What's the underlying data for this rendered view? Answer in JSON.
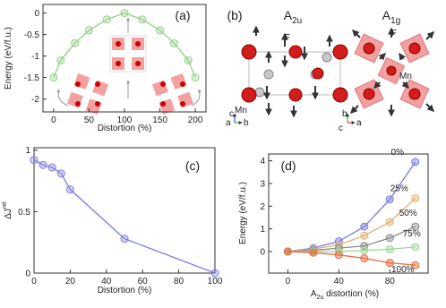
{
  "chart_data": [
    {
      "type": "line",
      "panel": "(a)",
      "xlabel": "Distortion (%)",
      "ylabel": "Energy (eV/f.u.)",
      "x": [
        0,
        10,
        30,
        50,
        75,
        100,
        125,
        150,
        170,
        190,
        200
      ],
      "values": [
        -1.5,
        -1.1,
        -0.7,
        -0.4,
        -0.15,
        0,
        -0.15,
        -0.4,
        -0.7,
        -1.1,
        -1.5
      ],
      "color": "#8fd184",
      "xlim": [
        -15,
        215
      ],
      "xticks": [
        0,
        50,
        100,
        150,
        200
      ],
      "ylim": [
        -2.3,
        0.2
      ],
      "yticks": [
        0,
        -0.5,
        -1,
        -1.5,
        -2
      ]
    },
    {
      "type": "line",
      "panel": "(c)",
      "xlabel": "Distortion (%)",
      "ylabel": "ΔJ",
      "ylabel_sup": "rel",
      "x": [
        0,
        5,
        10,
        15,
        20,
        50,
        100
      ],
      "values": [
        0.92,
        0.88,
        0.86,
        0.81,
        0.68,
        0.28,
        0
      ],
      "color": "#7b7be0",
      "xlim": [
        0,
        100
      ],
      "xticks": [
        0,
        20,
        40,
        60,
        80,
        100
      ],
      "ylim": [
        0,
        1.02
      ],
      "yticks": [
        0,
        0.5,
        1
      ]
    },
    {
      "type": "line",
      "panel": "(d)",
      "xlabel": "A",
      "xlabel_sub": "2u",
      "xlabel_rest": " distortion (%)",
      "ylabel": "Energy (eV/f.u.)",
      "x": [
        0,
        20,
        40,
        60,
        80,
        100
      ],
      "series": [
        {
          "name": "0%",
          "color": "#7b7be0",
          "values": [
            0,
            0.15,
            0.45,
            1.1,
            2.3,
            3.95
          ]
        },
        {
          "name": "25%",
          "color": "#e3b074",
          "values": [
            0,
            0.1,
            0.3,
            0.7,
            1.3,
            2.35
          ]
        },
        {
          "name": "50%",
          "color": "#8c8c8c",
          "values": [
            0,
            0.05,
            0.15,
            0.25,
            0.6,
            1.1
          ]
        },
        {
          "name": "75%",
          "color": "#9fd896",
          "values": [
            0,
            0,
            0,
            0.05,
            0.1,
            0.2
          ]
        },
        {
          "name": "100%",
          "color": "#e8693a",
          "values": [
            0,
            -0.05,
            -0.15,
            -0.3,
            -0.5,
            -0.6
          ]
        }
      ],
      "xlim": [
        -15,
        110
      ],
      "xticks": [
        0,
        40,
        80
      ],
      "ylim": [
        -0.95,
        4.3
      ],
      "yticks": [
        0,
        1,
        2,
        3,
        4
      ]
    }
  ],
  "diagram": {
    "panel": "(b)",
    "left": {
      "title": "A",
      "title_sub": "2u",
      "atom_f": "F",
      "atom_mn": "Mn",
      "axis_up": "c",
      "axis_left": "a",
      "axis_right": "b"
    },
    "right": {
      "title": "A",
      "title_sub": "1g",
      "atom_f": "F",
      "atom_mn": "Mn",
      "axis_up": "b",
      "axis_left": "c",
      "axis_right": "a"
    }
  }
}
